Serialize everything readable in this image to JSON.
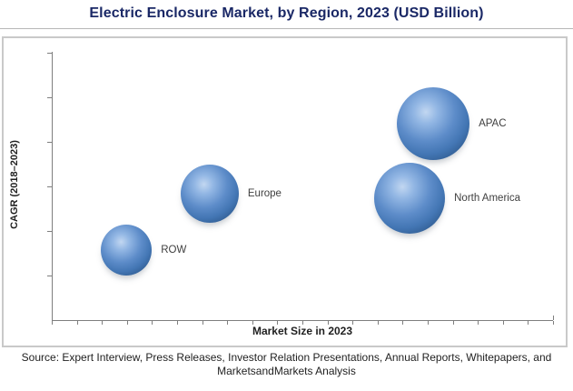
{
  "title": "Electric Enclosure Market, by Region, 2023 (USD Billion)",
  "source": {
    "line1": "Source: Expert Interview, Press Releases, Investor Relation Presentations, Annual Reports, Whitepapers, and",
    "line2": "MarketsandMarkets Analysis"
  },
  "colors": {
    "title_navy": "#1a2866",
    "bubble_main": "#4f81bd",
    "bubble_highlight": "#c2d7f1",
    "bubble_dark": "#224468",
    "axis_gray": "#7f7f7f",
    "frame_border": "#c9c9c9"
  },
  "chart_data": {
    "type": "scatter",
    "subtype": "bubble",
    "title": "Electric Enclosure Market, by Region, 2023 (USD Billion)",
    "xlabel": "Market Size in 2023",
    "ylabel": "CAGR (2018–2023)",
    "grid": false,
    "legend_position": "none",
    "axes_numeric_labels_shown": false,
    "x_axis": {
      "range_fraction": [
        0,
        1
      ],
      "tick_count": 20
    },
    "y_axis": {
      "range_fraction": [
        0,
        1
      ],
      "tick_count": 6
    },
    "points": [
      {
        "label": "ROW",
        "x": 0.149,
        "y": 0.261,
        "radius_px": 28
      },
      {
        "label": "Europe",
        "x": 0.315,
        "y": 0.471,
        "radius_px": 32
      },
      {
        "label": "North America",
        "x": 0.714,
        "y": 0.454,
        "radius_px": 39
      },
      {
        "label": "APAC",
        "x": 0.761,
        "y": 0.732,
        "radius_px": 40
      }
    ]
  }
}
